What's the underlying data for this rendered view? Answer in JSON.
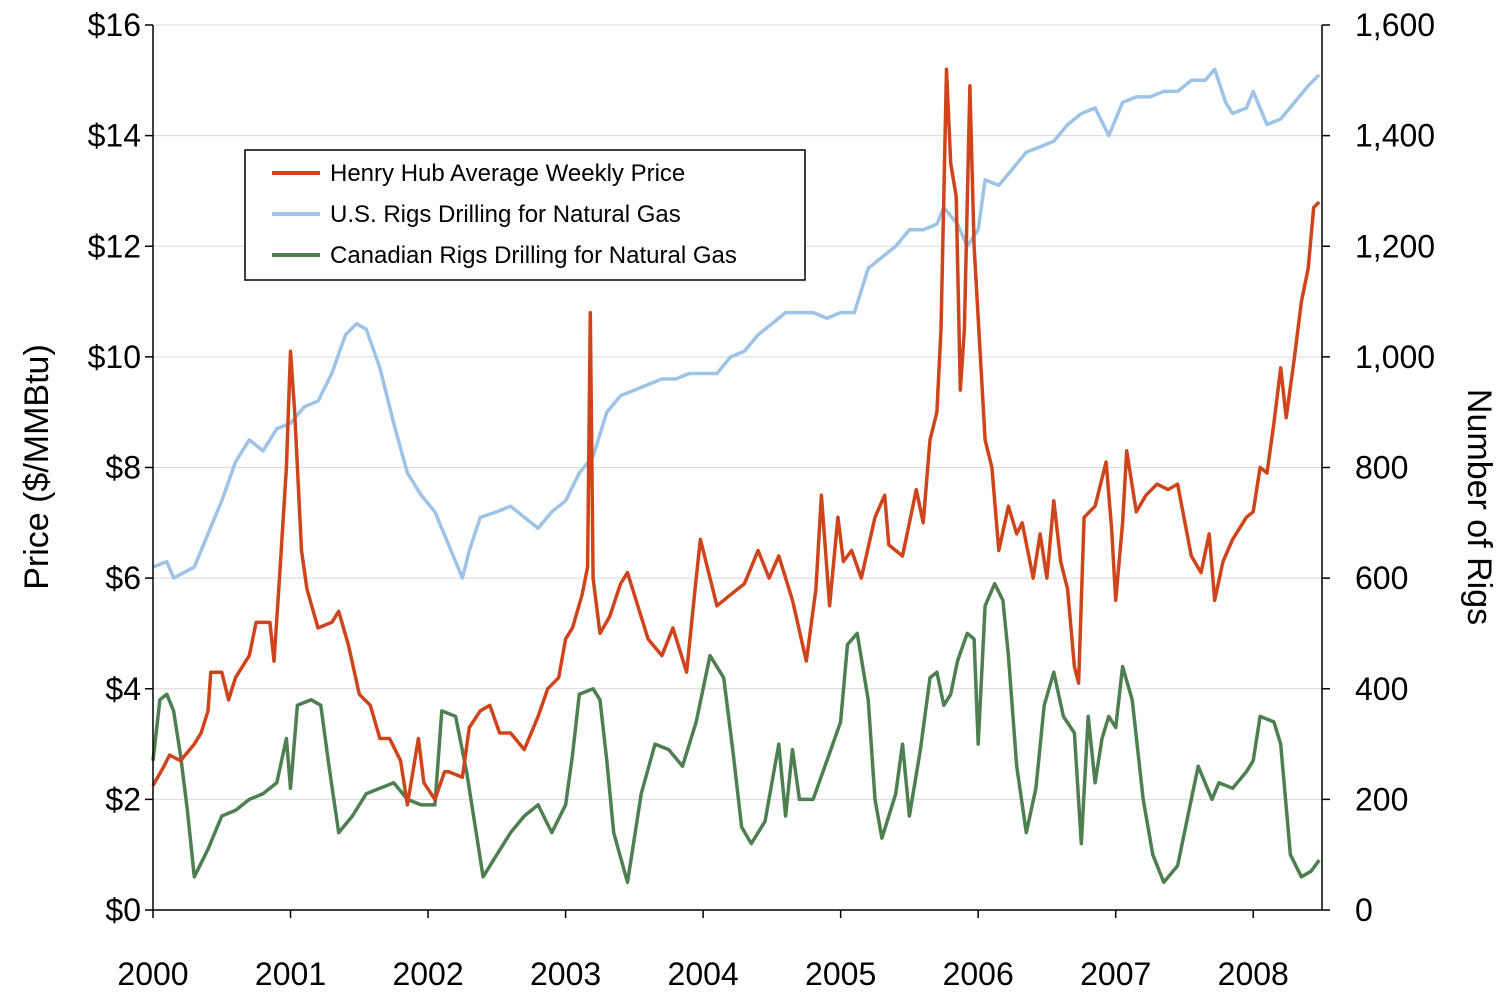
{
  "chart_data": {
    "type": "line",
    "y_label": "Price ($/MMBtu)",
    "y2_label": "Number of Rigs",
    "xlim": [
      2000,
      2008.5
    ],
    "xticks": [
      2000,
      2001,
      2002,
      2003,
      2004,
      2005,
      2006,
      2007,
      2008
    ],
    "ylim": [
      0,
      16
    ],
    "yticks": [
      {
        "value": 0,
        "label": "$0"
      },
      {
        "value": 2,
        "label": "$2"
      },
      {
        "value": 4,
        "label": "$4"
      },
      {
        "value": 6,
        "label": "$6"
      },
      {
        "value": 8,
        "label": "$8"
      },
      {
        "value": 10,
        "label": "$10"
      },
      {
        "value": 12,
        "label": "$12"
      },
      {
        "value": 14,
        "label": "$14"
      },
      {
        "value": 16,
        "label": "$16"
      }
    ],
    "y2lim": [
      0,
      1600
    ],
    "y2ticks": [
      0,
      200,
      400,
      600,
      800,
      {
        "value": 1000,
        "label": "1,000"
      },
      {
        "value": 1200,
        "label": "1,200"
      },
      {
        "value": 1400,
        "label": "1,400"
      },
      {
        "value": 1600,
        "label": "1,600"
      }
    ],
    "grid": true,
    "legend": "upper left",
    "series": [
      {
        "name": "Henry Hub Average Weekly Price",
        "color": "#d0441c",
        "axis": "y",
        "x": [
          2000.0,
          2000.08,
          2000.12,
          2000.2,
          2000.3,
          2000.35,
          2000.4,
          2000.42,
          2000.5,
          2000.55,
          2000.6,
          2000.7,
          2000.75,
          2000.85,
          2000.88,
          2000.92,
          2000.97,
          2001.0,
          2001.03,
          2001.08,
          2001.12,
          2001.2,
          2001.3,
          2001.35,
          2001.42,
          2001.5,
          2001.58,
          2001.65,
          2001.72,
          2001.8,
          2001.85,
          2001.93,
          2001.97,
          2002.05,
          2002.12,
          2002.15,
          2002.25,
          2002.3,
          2002.38,
          2002.45,
          2002.52,
          2002.6,
          2002.7,
          2002.8,
          2002.87,
          2002.95,
          2003.0,
          2003.05,
          2003.12,
          2003.16,
          2003.18,
          2003.2,
          2003.25,
          2003.32,
          2003.4,
          2003.45,
          2003.55,
          2003.6,
          2003.7,
          2003.78,
          2003.88,
          2003.95,
          2003.98,
          2004.02,
          2004.1,
          2004.2,
          2004.3,
          2004.35,
          2004.4,
          2004.48,
          2004.55,
          2004.65,
          2004.75,
          2004.82,
          2004.86,
          2004.92,
          2004.98,
          2005.02,
          2005.08,
          2005.15,
          2005.25,
          2005.32,
          2005.35,
          2005.45,
          2005.55,
          2005.6,
          2005.65,
          2005.7,
          2005.73,
          2005.77,
          2005.8,
          2005.84,
          2005.87,
          2005.9,
          2005.94,
          2005.97,
          2006.05,
          2006.1,
          2006.15,
          2006.22,
          2006.28,
          2006.32,
          2006.4,
          2006.45,
          2006.5,
          2006.55,
          2006.6,
          2006.65,
          2006.7,
          2006.73,
          2006.77,
          2006.85,
          2006.93,
          2006.97,
          2007.0,
          2007.05,
          2007.08,
          2007.15,
          2007.22,
          2007.3,
          2007.38,
          2007.45,
          2007.55,
          2007.62,
          2007.68,
          2007.72,
          2007.78,
          2007.85,
          2007.95,
          2008.0,
          2008.05,
          2008.1,
          2008.15,
          2008.2,
          2008.24,
          2008.3,
          2008.35,
          2008.4,
          2008.44,
          2008.48
        ],
        "values": [
          2.25,
          2.6,
          2.8,
          2.7,
          3.0,
          3.2,
          3.6,
          4.3,
          4.3,
          3.8,
          4.2,
          4.6,
          5.2,
          5.2,
          4.5,
          6.0,
          8.0,
          10.1,
          9.0,
          6.5,
          5.8,
          5.1,
          5.2,
          5.4,
          4.8,
          3.9,
          3.7,
          3.1,
          3.1,
          2.7,
          1.9,
          3.1,
          2.3,
          2.0,
          2.5,
          2.5,
          2.4,
          3.3,
          3.6,
          3.7,
          3.2,
          3.2,
          2.9,
          3.5,
          4.0,
          4.2,
          4.9,
          5.1,
          5.7,
          6.2,
          10.8,
          6.0,
          5.0,
          5.3,
          5.9,
          6.1,
          5.3,
          4.9,
          4.6,
          5.1,
          4.3,
          6.0,
          6.7,
          6.3,
          5.5,
          5.7,
          5.9,
          6.2,
          6.5,
          6.0,
          6.4,
          5.6,
          4.5,
          5.8,
          7.5,
          5.5,
          7.1,
          6.3,
          6.5,
          6.0,
          7.1,
          7.5,
          6.6,
          6.4,
          7.6,
          7.0,
          8.5,
          9.0,
          10.5,
          15.2,
          13.5,
          12.9,
          9.4,
          10.5,
          14.9,
          12.0,
          8.5,
          8.0,
          6.5,
          7.3,
          6.8,
          7.0,
          6.0,
          6.8,
          6.0,
          7.4,
          6.3,
          5.8,
          4.4,
          4.1,
          7.1,
          7.3,
          8.1,
          6.9,
          5.6,
          7.0,
          8.3,
          7.2,
          7.5,
          7.7,
          7.6,
          7.7,
          6.4,
          6.1,
          6.8,
          5.6,
          6.3,
          6.7,
          7.1,
          7.2,
          8.0,
          7.9,
          8.8,
          9.8,
          8.9,
          10.0,
          11.0,
          11.6,
          12.7,
          12.8
        ]
      },
      {
        "name": "U.S. Rigs Drilling for Natural Gas",
        "color": "#9dc3e6",
        "axis": "y2",
        "x": [
          2000.0,
          2000.1,
          2000.15,
          2000.3,
          2000.4,
          2000.5,
          2000.6,
          2000.7,
          2000.8,
          2000.9,
          2001.0,
          2001.1,
          2001.2,
          2001.3,
          2001.4,
          2001.48,
          2001.55,
          2001.65,
          2001.75,
          2001.85,
          2001.95,
          2002.05,
          2002.15,
          2002.25,
          2002.3,
          2002.38,
          2002.5,
          2002.6,
          2002.7,
          2002.8,
          2002.9,
          2003.0,
          2003.1,
          2003.2,
          2003.3,
          2003.4,
          2003.5,
          2003.6,
          2003.7,
          2003.8,
          2003.9,
          2004.0,
          2004.1,
          2004.2,
          2004.3,
          2004.4,
          2004.5,
          2004.6,
          2004.7,
          2004.8,
          2004.9,
          2005.0,
          2005.1,
          2005.2,
          2005.3,
          2005.4,
          2005.5,
          2005.6,
          2005.7,
          2005.75,
          2005.85,
          2005.92,
          2006.0,
          2006.05,
          2006.15,
          2006.25,
          2006.35,
          2006.45,
          2006.55,
          2006.65,
          2006.75,
          2006.85,
          2006.95,
          2007.05,
          2007.15,
          2007.25,
          2007.35,
          2007.45,
          2007.55,
          2007.65,
          2007.72,
          2007.8,
          2007.85,
          2007.95,
          2008.0,
          2008.05,
          2008.1,
          2008.2,
          2008.3,
          2008.4,
          2008.48
        ],
        "values": [
          620,
          630,
          600,
          620,
          680,
          740,
          810,
          850,
          830,
          870,
          880,
          910,
          920,
          970,
          1040,
          1060,
          1050,
          980,
          880,
          790,
          750,
          720,
          660,
          600,
          650,
          710,
          720,
          730,
          710,
          690,
          720,
          740,
          790,
          820,
          900,
          930,
          940,
          950,
          960,
          960,
          970,
          970,
          970,
          1000,
          1010,
          1040,
          1060,
          1080,
          1080,
          1080,
          1070,
          1080,
          1080,
          1160,
          1180,
          1200,
          1230,
          1230,
          1240,
          1270,
          1240,
          1200,
          1230,
          1320,
          1310,
          1340,
          1370,
          1380,
          1390,
          1420,
          1440,
          1450,
          1400,
          1460,
          1470,
          1470,
          1480,
          1480,
          1500,
          1500,
          1520,
          1460,
          1440,
          1450,
          1480,
          1450,
          1420,
          1430,
          1460,
          1490,
          1510
        ]
      },
      {
        "name": "Canadian Rigs Drilling for Natural Gas",
        "color": "#4e7f50",
        "axis": "y2",
        "x": [
          2000.0,
          2000.05,
          2000.1,
          2000.15,
          2000.2,
          2000.25,
          2000.3,
          2000.4,
          2000.5,
          2000.6,
          2000.7,
          2000.8,
          2000.9,
          2000.97,
          2001.0,
          2001.05,
          2001.15,
          2001.22,
          2001.28,
          2001.35,
          2001.45,
          2001.55,
          2001.65,
          2001.75,
          2001.85,
          2001.95,
          2002.05,
          2002.1,
          2002.2,
          2002.28,
          2002.35,
          2002.4,
          2002.5,
          2002.6,
          2002.7,
          2002.8,
          2002.9,
          2003.0,
          2003.05,
          2003.1,
          2003.2,
          2003.25,
          2003.3,
          2003.35,
          2003.45,
          2003.55,
          2003.65,
          2003.75,
          2003.85,
          2003.95,
          2004.05,
          2004.15,
          2004.22,
          2004.28,
          2004.35,
          2004.45,
          2004.55,
          2004.6,
          2004.65,
          2004.7,
          2004.8,
          2004.9,
          2005.0,
          2005.05,
          2005.12,
          2005.2,
          2005.25,
          2005.3,
          2005.4,
          2005.45,
          2005.5,
          2005.58,
          2005.65,
          2005.7,
          2005.75,
          2005.8,
          2005.85,
          2005.92,
          2005.97,
          2006.0,
          2006.05,
          2006.12,
          2006.18,
          2006.22,
          2006.28,
          2006.35,
          2006.42,
          2006.48,
          2006.55,
          2006.62,
          2006.7,
          2006.75,
          2006.8,
          2006.85,
          2006.9,
          2006.95,
          2007.0,
          2007.05,
          2007.12,
          2007.2,
          2007.27,
          2007.35,
          2007.45,
          2007.55,
          2007.6,
          2007.7,
          2007.75,
          2007.85,
          2007.95,
          2008.0,
          2008.05,
          2008.15,
          2008.2,
          2008.27,
          2008.35,
          2008.42,
          2008.48
        ],
        "values": [
          270,
          380,
          390,
          360,
          280,
          180,
          60,
          110,
          170,
          180,
          200,
          210,
          230,
          310,
          220,
          370,
          380,
          370,
          260,
          140,
          170,
          210,
          220,
          230,
          200,
          190,
          190,
          360,
          350,
          250,
          140,
          60,
          100,
          140,
          170,
          190,
          140,
          190,
          280,
          390,
          400,
          380,
          270,
          140,
          50,
          210,
          300,
          290,
          260,
          340,
          460,
          420,
          280,
          150,
          120,
          160,
          300,
          170,
          290,
          200,
          200,
          270,
          340,
          480,
          500,
          380,
          200,
          130,
          210,
          300,
          170,
          290,
          420,
          430,
          370,
          390,
          450,
          500,
          490,
          300,
          550,
          590,
          560,
          460,
          260,
          140,
          220,
          370,
          430,
          350,
          320,
          120,
          350,
          230,
          310,
          350,
          330,
          440,
          380,
          200,
          100,
          50,
          80,
          200,
          260,
          200,
          230,
          220,
          250,
          270,
          350,
          340,
          300,
          100,
          60,
          70,
          90
        ]
      }
    ]
  }
}
